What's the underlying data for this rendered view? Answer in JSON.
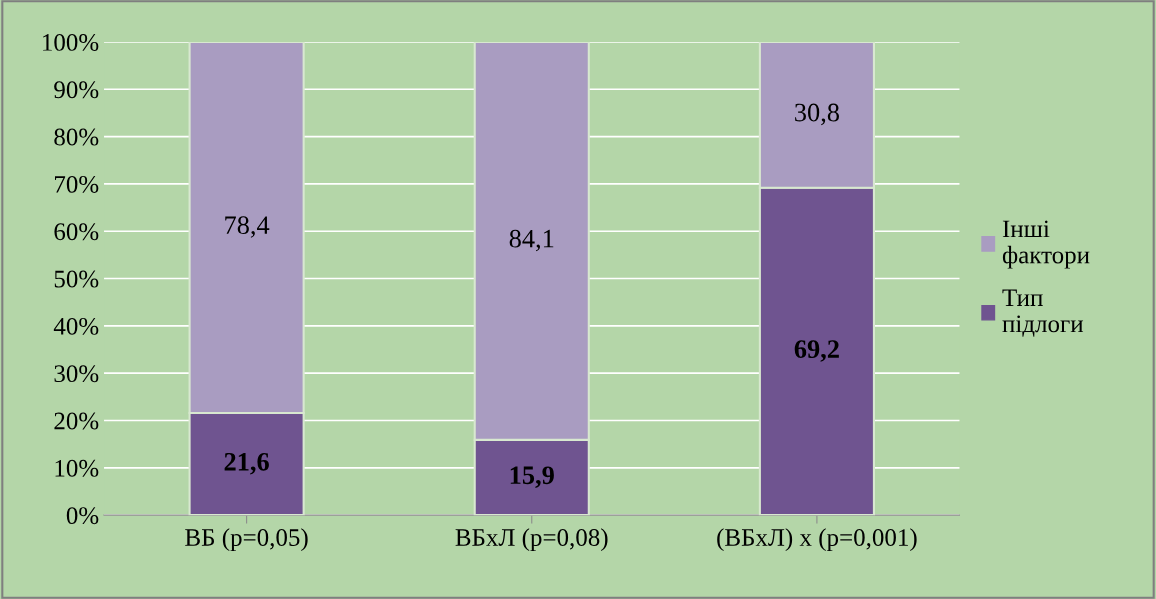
{
  "chart_data": {
    "type": "bar",
    "stacked": true,
    "categories": [
      "ВБ (p=0,05)",
      "ВБхЛ (p=0,08)",
      "(ВБхЛ) х (p=0,001)"
    ],
    "series": [
      {
        "name": "Тип підлоги",
        "color": "#6f5490",
        "values": [
          21.6,
          15.9,
          69.2
        ],
        "value_labels": [
          "21,6",
          "15,9",
          "69,2"
        ]
      },
      {
        "name": "Інші фактори",
        "color": "#a99cc1",
        "values": [
          78.4,
          84.1,
          30.8
        ],
        "value_labels": [
          "78,4",
          "84,1",
          "30,8"
        ]
      }
    ],
    "ylim": [
      0,
      100
    ],
    "yticks": [
      {
        "value": 0,
        "label": "0%"
      },
      {
        "value": 10,
        "label": "10%"
      },
      {
        "value": 20,
        "label": "20%"
      },
      {
        "value": 30,
        "label": "30%"
      },
      {
        "value": 40,
        "label": "40%"
      },
      {
        "value": 50,
        "label": "50%"
      },
      {
        "value": 60,
        "label": "60%"
      },
      {
        "value": 70,
        "label": "70%"
      },
      {
        "value": 80,
        "label": "80%"
      },
      {
        "value": 90,
        "label": "90%"
      },
      {
        "value": 100,
        "label": "100%"
      }
    ],
    "grid": "y",
    "legend": "right"
  }
}
